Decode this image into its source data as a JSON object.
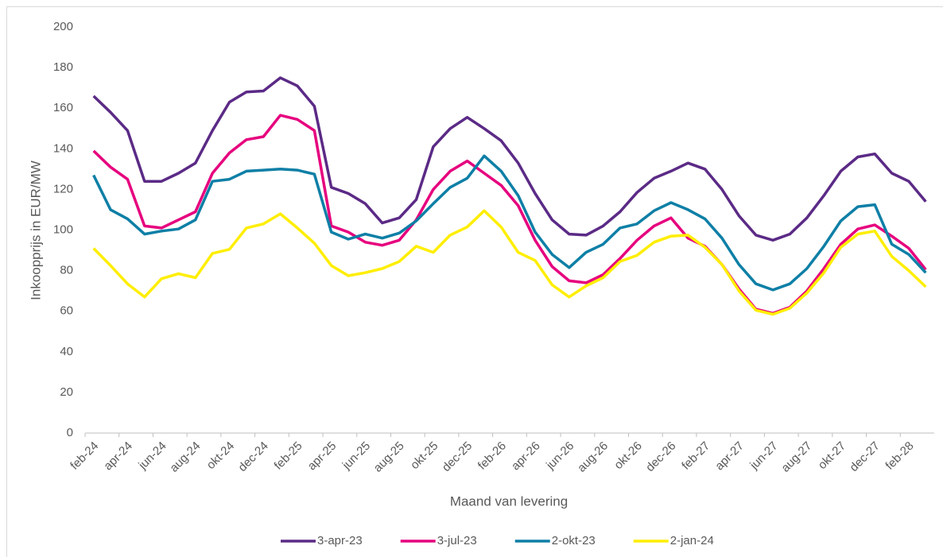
{
  "chart_data": {
    "type": "line",
    "x_label": "Maand van levering",
    "y_label": "Inkoopprijs in EUR/MW",
    "categories": [
      "feb-24",
      null,
      "apr-24",
      null,
      "jun-24",
      null,
      "aug-24",
      null,
      "okt-24",
      null,
      "dec-24",
      null,
      "feb-25",
      null,
      "apr-25",
      null,
      "jun-25",
      null,
      "aug-25",
      null,
      "okt-25",
      null,
      "dec-25",
      null,
      "feb-26",
      null,
      "apr-26",
      null,
      "jun-26",
      null,
      "aug-26",
      null,
      "okt-26",
      null,
      "dec-26",
      null,
      "feb-27",
      null,
      "apr-27",
      null,
      "jun-27",
      null,
      "aug-27",
      null,
      "okt-27",
      null,
      "dec-27",
      null,
      "feb-28",
      null
    ],
    "series": [
      {
        "name": "3-apr-23",
        "color": "#5b2a86",
        "values": [
          166,
          158,
          149,
          124,
          124,
          128,
          133,
          149,
          163,
          168,
          168.5,
          175,
          171,
          161,
          121,
          118,
          113,
          103.5,
          106,
          115,
          141,
          150,
          155.5,
          150,
          144,
          133,
          118,
          105,
          98,
          97.5,
          102,
          109,
          118.5,
          125.5,
          129,
          133,
          130,
          120,
          107,
          97.5,
          95,
          98,
          106,
          117,
          129,
          136,
          137.5,
          128,
          124,
          114
        ]
      },
      {
        "name": "3-jul-23",
        "color": "#e6007e",
        "values": [
          139,
          131,
          125,
          102,
          101,
          105,
          109,
          128,
          138,
          144.5,
          146,
          156.5,
          154.5,
          149,
          102,
          99,
          94,
          92.5,
          95,
          105,
          120,
          129,
          134,
          128,
          122,
          112,
          95,
          82,
          75,
          74,
          78,
          86,
          95,
          102,
          106,
          96,
          92,
          83,
          71,
          61,
          59,
          62,
          70,
          81,
          93,
          100.5,
          102.5,
          97,
          91,
          80.5
        ]
      },
      {
        "name": "2-okt-23",
        "color": "#0e7fa6",
        "values": [
          127,
          110,
          105.5,
          98,
          99.5,
          100.5,
          105,
          124,
          125,
          129,
          129.5,
          130,
          129.5,
          127.5,
          99,
          95.5,
          98,
          96,
          98.5,
          104.5,
          113,
          121,
          125.5,
          136.5,
          129,
          117,
          99,
          88,
          81.5,
          89,
          93,
          101,
          103,
          109.5,
          113.5,
          110,
          105.5,
          96,
          83,
          73.5,
          70.5,
          73.5,
          81,
          92,
          104.5,
          111.5,
          112.5,
          93,
          88,
          79
        ]
      },
      {
        "name": "2-jan-24",
        "color": "#ffee00",
        "values": [
          91,
          82.5,
          73.5,
          67,
          76,
          78.5,
          76.5,
          88.5,
          90.5,
          101,
          103,
          108,
          101,
          93.5,
          82.5,
          77.5,
          79,
          81,
          84.5,
          92,
          89,
          97.5,
          101.5,
          109.5,
          101.5,
          89,
          85,
          73,
          67,
          72.5,
          76.5,
          84.5,
          87.5,
          94,
          97,
          97.5,
          91.5,
          83,
          70,
          60.5,
          58.5,
          61.5,
          69,
          79,
          91.5,
          98,
          99.5,
          87,
          80,
          72
        ]
      }
    ],
    "ylim": [
      0,
      200
    ],
    "yticks": [
      0,
      20,
      40,
      60,
      80,
      100,
      120,
      140,
      160,
      180,
      200
    ],
    "legend": "bottom"
  }
}
